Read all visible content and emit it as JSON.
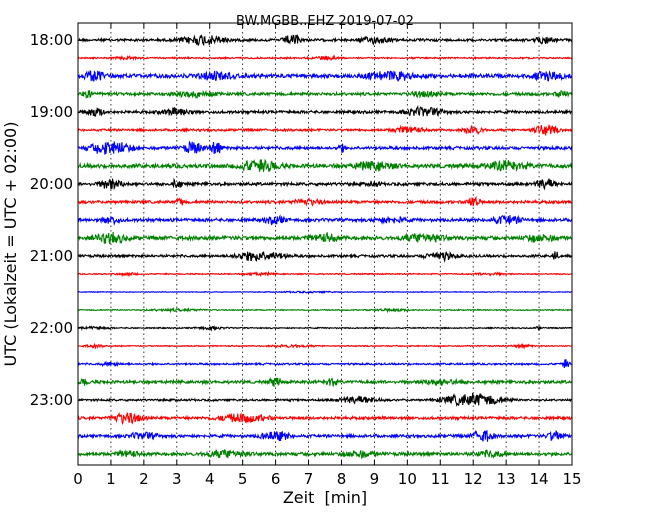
{
  "chart_data": {
    "type": "line",
    "title": "BW.MGBB..EHZ 2019-07-02",
    "xlabel": "Zeit  [min]",
    "ylabel": "UTC (Lokalzeit = UTC + 02:00)",
    "xlim": [
      0,
      15
    ],
    "x_ticks": [
      "0",
      "1",
      "2",
      "3",
      "4",
      "5",
      "6",
      "7",
      "8",
      "9",
      "10",
      "11",
      "12",
      "13",
      "14",
      "15"
    ],
    "y_ticks": [
      "18:00",
      "19:00",
      "20:00",
      "21:00",
      "22:00",
      "23:00"
    ],
    "grid": "vertical dotted",
    "trace_colors": [
      "#000000",
      "#ff0000",
      "#0000ff",
      "#008000"
    ],
    "series": [
      {
        "row": 0,
        "color": "#000000",
        "bursts": [
          [
            3.8,
            2.2,
            0.8
          ],
          [
            6.5,
            0.8,
            1.0
          ],
          [
            9.0,
            1.5,
            0.5
          ],
          [
            14.2,
            1.0,
            0.5
          ]
        ],
        "base": 0.22,
        "strength": 0.7
      },
      {
        "row": 1,
        "color": "#ff0000",
        "bursts": [
          [
            1.5,
            1.0,
            0.3
          ],
          [
            7.5,
            1.5,
            0.3
          ]
        ],
        "base": 0.18,
        "strength": 0.5
      },
      {
        "row": 2,
        "color": "#0000ff",
        "bursts": [
          [
            0.5,
            1.0,
            0.7
          ],
          [
            4.2,
            1.5,
            0.6
          ],
          [
            9.5,
            2.5,
            0.55
          ],
          [
            14.3,
            1.5,
            0.6
          ]
        ],
        "base": 0.3,
        "strength": 0.8
      },
      {
        "row": 3,
        "color": "#008000",
        "bursts": [
          [
            0.3,
            0.6,
            0.5
          ],
          [
            3.5,
            2.0,
            0.4
          ],
          [
            10.5,
            1.5,
            0.4
          ],
          [
            14.7,
            0.6,
            0.6
          ]
        ],
        "base": 0.25,
        "strength": 0.7
      },
      {
        "row": 4,
        "color": "#000000",
        "bursts": [
          [
            0.5,
            1.0,
            0.6
          ],
          [
            3.0,
            1.5,
            0.5
          ],
          [
            10.5,
            2.0,
            0.6
          ]
        ],
        "base": 0.22,
        "strength": 0.75
      },
      {
        "row": 5,
        "color": "#ff0000",
        "bursts": [
          [
            10.0,
            1.5,
            0.5
          ],
          [
            12.0,
            1.0,
            0.6
          ],
          [
            14.2,
            1.2,
            0.8
          ]
        ],
        "base": 0.18,
        "strength": 0.75
      },
      {
        "row": 6,
        "color": "#0000ff",
        "bursts": [
          [
            1.0,
            2.0,
            0.9
          ],
          [
            3.5,
            1.0,
            0.7
          ],
          [
            4.2,
            0.6,
            0.9
          ],
          [
            8.0,
            0.3,
            0.5
          ]
        ],
        "base": 0.2,
        "strength": 0.9
      },
      {
        "row": 7,
        "color": "#008000",
        "bursts": [
          [
            5.5,
            2.0,
            0.8
          ],
          [
            9.0,
            2.0,
            0.5
          ],
          [
            13.0,
            2.0,
            0.6
          ]
        ],
        "base": 0.3,
        "strength": 0.8
      },
      {
        "row": 8,
        "color": "#000000",
        "bursts": [
          [
            1.0,
            1.2,
            0.7
          ],
          [
            3.0,
            0.5,
            0.6
          ],
          [
            9.0,
            0.5,
            0.4
          ],
          [
            14.2,
            1.0,
            0.7
          ]
        ],
        "base": 0.22,
        "strength": 0.8
      },
      {
        "row": 9,
        "color": "#ff0000",
        "bursts": [
          [
            3.1,
            0.3,
            0.9
          ],
          [
            7.0,
            1.5,
            0.4
          ],
          [
            12.0,
            0.6,
            0.9
          ]
        ],
        "base": 0.22,
        "strength": 0.75
      },
      {
        "row": 10,
        "color": "#0000ff",
        "bursts": [
          [
            1.0,
            0.8,
            0.6
          ],
          [
            6.0,
            1.0,
            0.6
          ],
          [
            9.5,
            1.5,
            0.4
          ],
          [
            13.0,
            1.5,
            0.6
          ]
        ],
        "base": 0.25,
        "strength": 0.75
      },
      {
        "row": 11,
        "color": "#008000",
        "bursts": [
          [
            1.0,
            1.5,
            0.7
          ],
          [
            7.5,
            1.5,
            0.5
          ],
          [
            10.5,
            2.0,
            0.6
          ],
          [
            14.0,
            1.5,
            0.5
          ]
        ],
        "base": 0.3,
        "strength": 0.75
      },
      {
        "row": 12,
        "color": "#000000",
        "bursts": [
          [
            5.5,
            2.5,
            0.7
          ],
          [
            11.0,
            1.5,
            0.6
          ],
          [
            14.5,
            0.3,
            0.6
          ]
        ],
        "base": 0.2,
        "strength": 0.75
      },
      {
        "row": 13,
        "color": "#ff0000",
        "bursts": [
          [
            1.5,
            1.0,
            0.3
          ],
          [
            5.5,
            1.5,
            0.3
          ],
          [
            12.5,
            1.5,
            0.3
          ]
        ],
        "base": 0.15,
        "strength": 0.45
      },
      {
        "row": 14,
        "color": "#0000ff",
        "bursts": [
          [
            7.0,
            3.0,
            0.2
          ]
        ],
        "base": 0.12,
        "strength": 0.35
      },
      {
        "row": 15,
        "color": "#008000",
        "bursts": [
          [
            3.0,
            3.0,
            0.3
          ],
          [
            9.5,
            2.0,
            0.3
          ]
        ],
        "base": 0.15,
        "strength": 0.4
      },
      {
        "row": 16,
        "color": "#000000",
        "bursts": [
          [
            0.5,
            1.5,
            0.3
          ],
          [
            4.0,
            1.5,
            0.3
          ],
          [
            14.0,
            0.3,
            0.5
          ]
        ],
        "base": 0.15,
        "strength": 0.45
      },
      {
        "row": 17,
        "color": "#ff0000",
        "bursts": [
          [
            0.5,
            1.0,
            0.3
          ],
          [
            6.5,
            2.0,
            0.3
          ],
          [
            13.5,
            1.0,
            0.3
          ]
        ],
        "base": 0.15,
        "strength": 0.45
      },
      {
        "row": 18,
        "color": "#0000ff",
        "bursts": [
          [
            1.0,
            1.0,
            0.3
          ],
          [
            14.8,
            0.4,
            0.8
          ]
        ],
        "base": 0.18,
        "strength": 0.6
      },
      {
        "row": 19,
        "color": "#008000",
        "bursts": [
          [
            0.2,
            0.4,
            0.6
          ],
          [
            6.0,
            0.6,
            0.7
          ],
          [
            7.7,
            0.5,
            0.8
          ],
          [
            11.0,
            2.0,
            0.4
          ]
        ],
        "base": 0.25,
        "strength": 0.7
      },
      {
        "row": 20,
        "color": "#000000",
        "bursts": [
          [
            8.5,
            2.0,
            0.5
          ],
          [
            12.0,
            3.0,
            0.9
          ]
        ],
        "base": 0.15,
        "strength": 0.8
      },
      {
        "row": 21,
        "color": "#ff0000",
        "bursts": [
          [
            1.5,
            1.5,
            0.8
          ],
          [
            5.0,
            2.5,
            0.6
          ]
        ],
        "base": 0.22,
        "strength": 0.75
      },
      {
        "row": 22,
        "color": "#0000ff",
        "bursts": [
          [
            2.0,
            1.5,
            0.4
          ],
          [
            6.0,
            1.5,
            0.6
          ],
          [
            12.3,
            1.0,
            0.9
          ],
          [
            14.5,
            0.8,
            0.7
          ]
        ],
        "base": 0.22,
        "strength": 0.8
      },
      {
        "row": 23,
        "color": "#008000",
        "bursts": [
          [
            1.5,
            1.0,
            0.5
          ],
          [
            4.5,
            2.0,
            0.55
          ],
          [
            8.5,
            1.5,
            0.5
          ],
          [
            12.5,
            1.5,
            0.45
          ]
        ],
        "base": 0.28,
        "strength": 0.7
      }
    ]
  }
}
